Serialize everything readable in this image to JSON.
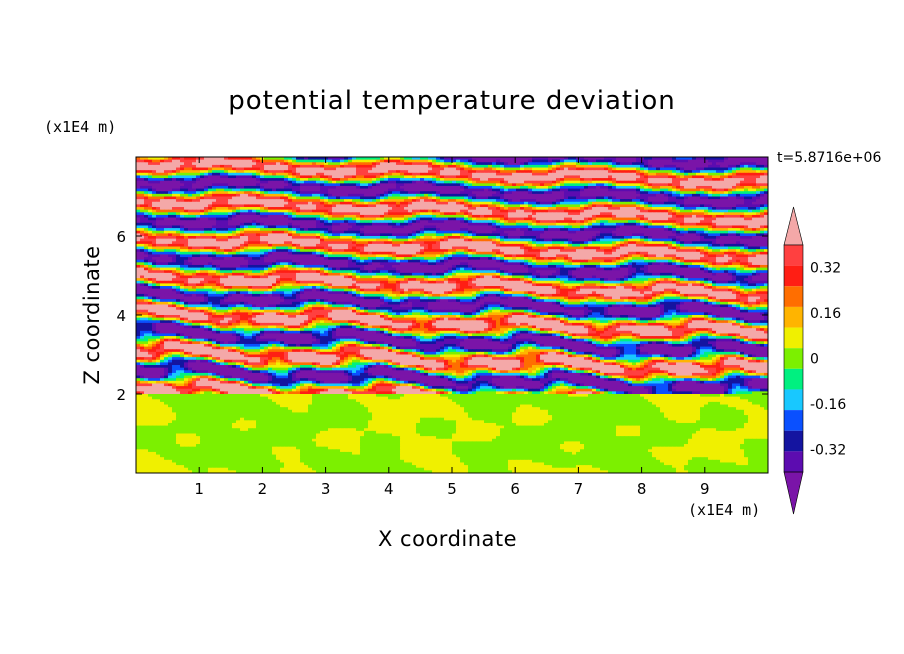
{
  "chart_data": {
    "type": "heatmap",
    "title": "potential temperature deviation",
    "xlabel": "X coordinate",
    "ylabel": "Z coordinate",
    "x_unit": "(x1E4 m)",
    "y_unit": "(x1E4 m)",
    "time_label": "t=5.8716e+06",
    "xlim": [
      0,
      10
    ],
    "ylim": [
      0,
      8
    ],
    "x_ticks": [
      1,
      2,
      3,
      4,
      5,
      6,
      7,
      8,
      9
    ],
    "y_ticks": [
      2,
      4,
      6
    ],
    "colorbar": {
      "levels": [
        -0.48,
        -0.4,
        -0.32,
        -0.24,
        -0.16,
        -0.08,
        0,
        0.08,
        0.16,
        0.24,
        0.32,
        0.4,
        0.48
      ],
      "tick_labels": [
        "0.32",
        "0.16",
        "0",
        "-0.16",
        "-0.32"
      ],
      "tick_values": [
        0.32,
        0.16,
        0,
        -0.16,
        -0.32
      ],
      "colors": [
        "#7a14a8",
        "#5c0cb0",
        "#1414a0",
        "#0a50ff",
        "#18c8ff",
        "#00f080",
        "#7cf000",
        "#f0f000",
        "#ffb400",
        "#ff6e00",
        "#ff1e14",
        "#ff4040",
        "#f4a8a8"
      ]
    },
    "field_description_bands": {
      "lower_layer_z": [
        0,
        2
      ],
      "lower_layer_values": [
        0,
        0.04
      ],
      "upper_layer_z": [
        2,
        8
      ],
      "upper_layer_extremes": [
        -0.48,
        0.48
      ]
    }
  }
}
